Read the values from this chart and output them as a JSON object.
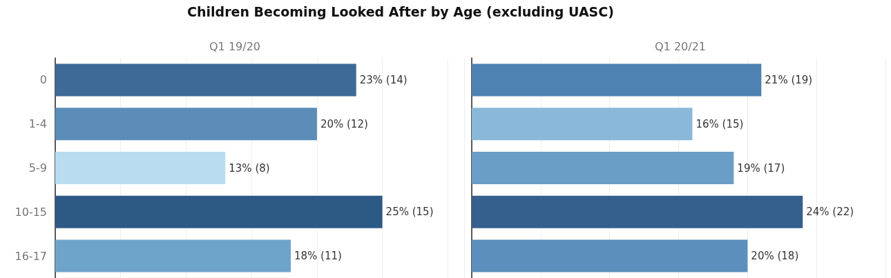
{
  "chart_data": [
    {
      "type": "bar",
      "orientation": "horizontal",
      "title": "Children Becoming Looked After by Age (excluding UASC)",
      "subtitle": "Q1 19/20",
      "categories": [
        "0",
        "1-4",
        "5-9",
        "10-15",
        "16-17"
      ],
      "values": [
        23,
        20,
        13,
        25,
        18
      ],
      "colors": [
        "#3d6a96",
        "#5b8db8",
        "#b9dcf0",
        "#2d5a84",
        "#6fa4c9"
      ],
      "value_labels": [
        "23% (14)",
        "20% (12)",
        "13% (8)",
        "25% (15)",
        "18% (11)"
      ],
      "grid": "x",
      "tick_labels": "y"
    },
    {
      "type": "bar",
      "orientation": "horizontal",
      "subtitle": "Q1 20/21",
      "categories": [
        null,
        null,
        null,
        null,
        null
      ],
      "values": [
        21,
        16,
        19,
        24,
        20
      ],
      "colors": [
        "#4e82b2",
        "#8ab8db",
        "#6b9ec6",
        "#355f8c",
        "#5d8fbc"
      ],
      "value_labels": [
        "21% (19)",
        "16% (15)",
        "19% (17)",
        "24% (22)",
        "20% (18)"
      ],
      "grid": "x",
      "tick_labels": false
    }
  ]
}
